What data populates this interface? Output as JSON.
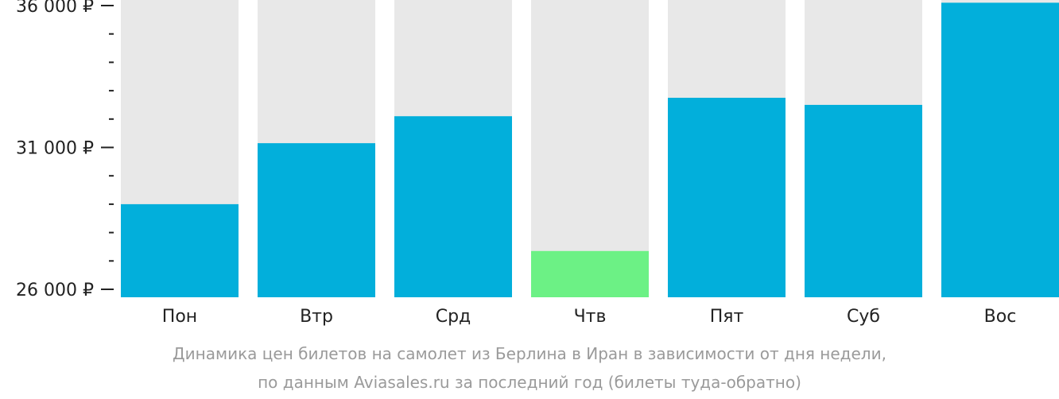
{
  "chart_data": {
    "type": "bar",
    "categories": [
      "Пон",
      "Втр",
      "Срд",
      "Чтв",
      "Пят",
      "Суб",
      "Вос"
    ],
    "values": [
      29000,
      31150,
      32100,
      27350,
      32750,
      32500,
      36100
    ],
    "highlight_index": 3,
    "ylim": [
      26000,
      36200
    ],
    "y_tick_values": [
      26000,
      31000,
      36000
    ],
    "y_tick_labels": [
      "26 000 ₽",
      "31 000 ₽",
      "36 000 ₽"
    ],
    "y_minor_step": 1000,
    "grid": false,
    "legend": "none",
    "colors": {
      "bar": "#02AFDB",
      "highlight": "#6CF185",
      "track": "#E8E8E8",
      "axis": "#222222"
    }
  },
  "caption": {
    "line1": "Динамика цен билетов на самолет из Берлина в Иран в зависимости от дня недели,",
    "line2": "по данным Aviasales.ru за последний год (билеты туда-обратно)"
  }
}
